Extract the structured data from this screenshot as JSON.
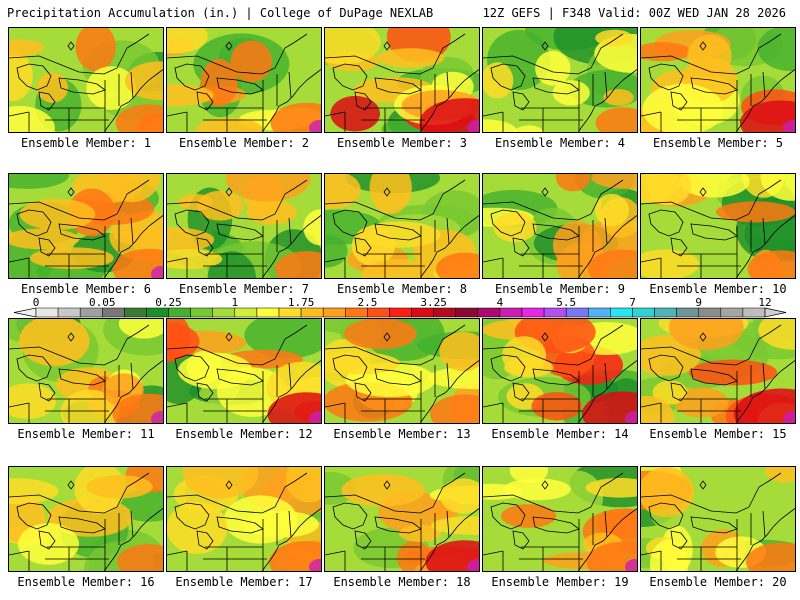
{
  "header": {
    "title_left": "Precipitation Accumulation (in.) | College of DuPage NEXLAB",
    "title_right": "12Z GEFS | F348 Valid: 00Z WED JAN 28 2026"
  },
  "colorbar": {
    "tick_labels": [
      "0",
      "0.05",
      "0.25",
      "1",
      "1.75",
      "2.5",
      "3.25",
      "4",
      "5.5",
      "7",
      "9",
      "12"
    ],
    "colors": [
      "#e6e6e6",
      "#c8c8c8",
      "#a0a0a0",
      "#787878",
      "#3c7a33",
      "#1b8f2a",
      "#44b02e",
      "#78c832",
      "#a6dc3a",
      "#d2ee3c",
      "#ffff3c",
      "#ffdc28",
      "#ffbe1e",
      "#ffa01e",
      "#ff7814",
      "#ff5014",
      "#ff1e14",
      "#dc0a14",
      "#b40a1e",
      "#8c0a32",
      "#aa0a6e",
      "#cc1eb4",
      "#e628e6",
      "#b450f0",
      "#7878f5",
      "#50b4f5",
      "#28e6f0",
      "#32d2d2",
      "#50b4b4",
      "#6e9696",
      "#8c8c8c",
      "#a5a5a5",
      "#bebebe"
    ]
  },
  "members": [
    {
      "label": "Ensemble Member: 1",
      "intensity": 0.45
    },
    {
      "label": "Ensemble Member: 2",
      "intensity": 0.55
    },
    {
      "label": "Ensemble Member: 3",
      "intensity": 0.85
    },
    {
      "label": "Ensemble Member: 4",
      "intensity": 0.25
    },
    {
      "label": "Ensemble Member: 5",
      "intensity": 0.7
    },
    {
      "label": "Ensemble Member: 6",
      "intensity": 0.55
    },
    {
      "label": "Ensemble Member: 7",
      "intensity": 0.4
    },
    {
      "label": "Ensemble Member: 8",
      "intensity": 0.3
    },
    {
      "label": "Ensemble Member: 9",
      "intensity": 0.5
    },
    {
      "label": "Ensemble Member: 10",
      "intensity": 0.45
    },
    {
      "label": "Ensemble Member: 11",
      "intensity": 0.55
    },
    {
      "label": "Ensemble Member: 12",
      "intensity": 0.65
    },
    {
      "label": "Ensemble Member: 13",
      "intensity": 0.5
    },
    {
      "label": "Ensemble Member: 14",
      "intensity": 0.7
    },
    {
      "label": "Ensemble Member: 15",
      "intensity": 0.9
    },
    {
      "label": "Ensemble Member: 16",
      "intensity": 0.4
    },
    {
      "label": "Ensemble Member: 17",
      "intensity": 0.6
    },
    {
      "label": "Ensemble Member: 18",
      "intensity": 0.65
    },
    {
      "label": "Ensemble Member: 19",
      "intensity": 0.55
    },
    {
      "label": "Ensemble Member: 20",
      "intensity": 0.5
    }
  ]
}
